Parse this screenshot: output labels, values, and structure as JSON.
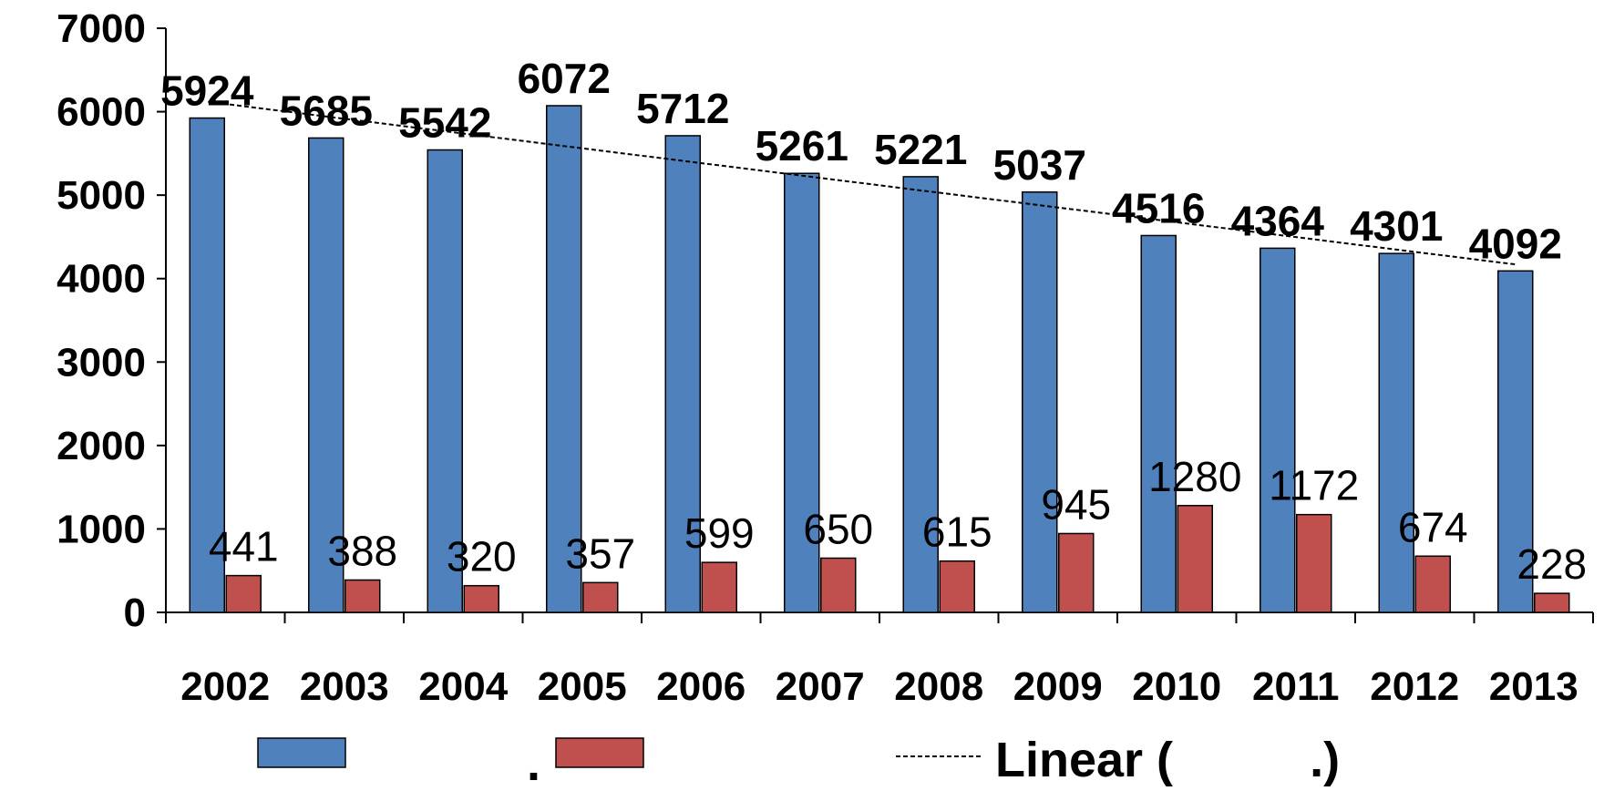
{
  "chart_data": {
    "type": "bar",
    "categories": [
      "2002",
      "2003",
      "2004",
      "2005",
      "2006",
      "2007",
      "2008",
      "2009",
      "2010",
      "2011",
      "2012",
      "2013"
    ],
    "series": [
      {
        "values": [
          5924,
          5685,
          5542,
          6072,
          5712,
          5261,
          5221,
          5037,
          4516,
          4364,
          4301,
          4092
        ],
        "color": "#4f81bd"
      },
      {
        "values": [
          441,
          388,
          320,
          357,
          599,
          650,
          615,
          945,
          1280,
          1172,
          674,
          228
        ],
        "color": "#c0504d"
      }
    ],
    "trendline": {
      "type": "linear",
      "series_index": 0,
      "style": "dashed"
    },
    "ylim": [
      0,
      7000
    ],
    "yticks": [
      "0",
      "1000",
      "2000",
      "3000",
      "4000",
      "5000",
      "6000",
      "7000"
    ],
    "grid": false,
    "legend": {
      "placement": "bottom",
      "items": [
        {
          "label": "",
          "kind": "bar",
          "color": "#4f81bd"
        },
        {
          "label": ".",
          "kind": "bar",
          "color": "#c0504d"
        },
        {
          "label": "Linear ( .)",
          "kind": "dashed-line"
        }
      ]
    }
  }
}
